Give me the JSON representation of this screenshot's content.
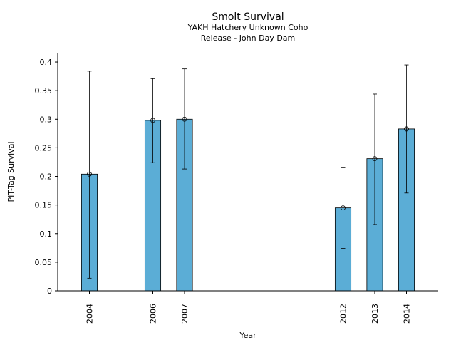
{
  "chart_data": {
    "type": "bar",
    "title": "Smolt Survival",
    "subtitle_lines": [
      "YAKH Hatchery Unknown Coho",
      "Release - John Day Dam"
    ],
    "xlabel": "Year",
    "ylabel": "PIT-Tag Survival",
    "categories": [
      "2004",
      "2006",
      "2007",
      "2012",
      "2013",
      "2014"
    ],
    "x": [
      2004,
      2006,
      2007,
      2012,
      2013,
      2014
    ],
    "values": [
      0.204,
      0.298,
      0.3,
      0.145,
      0.231,
      0.283
    ],
    "error_low": [
      0.022,
      0.224,
      0.213,
      0.074,
      0.116,
      0.171
    ],
    "error_high": [
      0.384,
      0.371,
      0.388,
      0.216,
      0.344,
      0.395
    ],
    "xlim": [
      2003.0,
      2015.0
    ],
    "ylim": [
      0,
      0.415
    ],
    "yticks": [
      "0",
      "0.05",
      "0.1",
      "0.15",
      "0.2",
      "0.25",
      "0.3",
      "0.35",
      "0.4"
    ],
    "ytick_values": [
      0,
      0.05,
      0.1,
      0.15,
      0.2,
      0.25,
      0.3,
      0.35,
      0.4
    ],
    "bar_color": "#5badd6",
    "grid": false,
    "legend": "none"
  }
}
